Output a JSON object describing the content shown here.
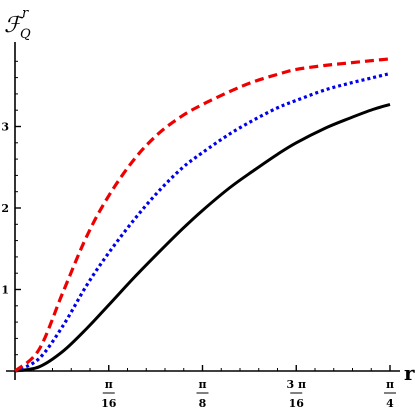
{
  "chart_data": {
    "type": "line",
    "ylabel": {
      "main": "ℱ",
      "superscript": "r",
      "subscript": "Q"
    },
    "xlabel": "r",
    "xlim": [
      0,
      0.785398
    ],
    "ylim": [
      0,
      4
    ],
    "yticks": [
      {
        "value": 1,
        "label": "1"
      },
      {
        "value": 2,
        "label": "2"
      },
      {
        "value": 3,
        "label": "3"
      }
    ],
    "xticks": [
      {
        "value": 0.19635,
        "num": "π",
        "den": "16"
      },
      {
        "value": 0.392699,
        "num": "π",
        "den": "8"
      },
      {
        "value": 0.589049,
        "num": "3 π",
        "den": "16"
      },
      {
        "value": 0.785398,
        "num": "π",
        "den": "4"
      }
    ],
    "grid": false,
    "series": [
      {
        "color": "#000000",
        "style": "solid",
        "x": [
          0,
          0.05,
          0.1,
          0.15,
          0.19635,
          0.25,
          0.3,
          0.35,
          0.392699,
          0.45,
          0.5,
          0.55,
          0.589049,
          0.65,
          0.7,
          0.75,
          0.785398
        ],
        "y": [
          0,
          0.05,
          0.24,
          0.52,
          0.81,
          1.15,
          1.45,
          1.74,
          1.97,
          2.25,
          2.46,
          2.66,
          2.8,
          2.98,
          3.1,
          3.21,
          3.27
        ]
      },
      {
        "color": "#0000ee",
        "style": "dotted",
        "x": [
          0,
          0.05,
          0.1,
          0.15,
          0.19635,
          0.25,
          0.3,
          0.35,
          0.392699,
          0.45,
          0.5,
          0.55,
          0.589049,
          0.65,
          0.7,
          0.75,
          0.785398
        ],
        "y": [
          0,
          0.15,
          0.55,
          1.05,
          1.45,
          1.86,
          2.2,
          2.49,
          2.68,
          2.91,
          3.08,
          3.23,
          3.32,
          3.45,
          3.53,
          3.6,
          3.65
        ]
      },
      {
        "color": "#ee0000",
        "style": "dashed",
        "x": [
          0,
          0.05,
          0.1,
          0.15,
          0.19635,
          0.25,
          0.3,
          0.35,
          0.392699,
          0.45,
          0.5,
          0.55,
          0.589049,
          0.65,
          0.7,
          0.75,
          0.785398
        ],
        "y": [
          0,
          0.26,
          0.96,
          1.65,
          2.15,
          2.6,
          2.91,
          3.13,
          3.27,
          3.43,
          3.55,
          3.64,
          3.7,
          3.75,
          3.78,
          3.81,
          3.83
        ]
      }
    ]
  }
}
